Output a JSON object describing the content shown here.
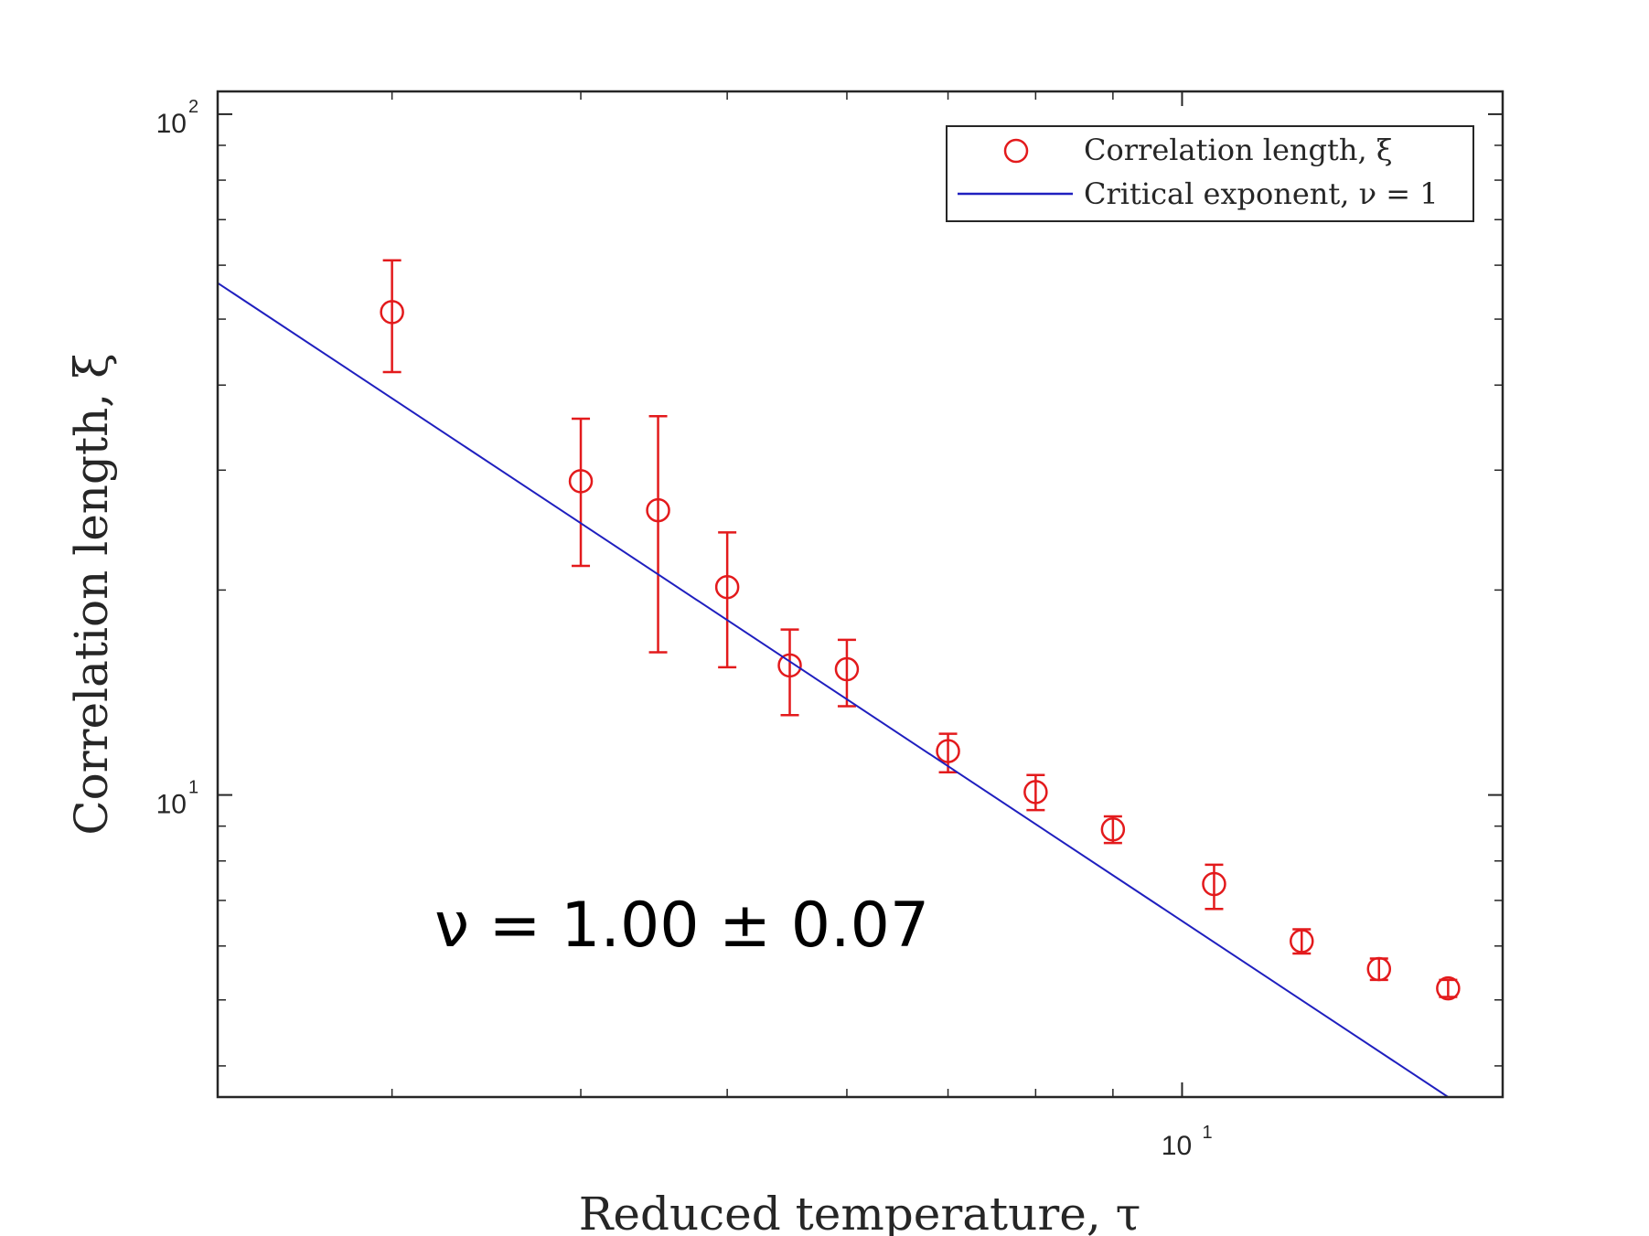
{
  "chart_data": {
    "type": "scatter",
    "title": "",
    "xlabel": "Reduced temperature, τ",
    "ylabel": "Correlation length, ξ",
    "x_scale": "log",
    "y_scale": "log",
    "xlim": [
      2.3,
      16.3
    ],
    "ylim": [
      3.6,
      108
    ],
    "grid": false,
    "legend_position": "top-right",
    "x_major_ticks": [
      {
        "base": "10",
        "exp": "1",
        "value": 10
      }
    ],
    "y_major_ticks": [
      {
        "base": "10",
        "exp": "2",
        "value": 100
      },
      {
        "base": "10",
        "exp": "1",
        "value": 10
      }
    ],
    "series": [
      {
        "name": "Correlation length, ξ",
        "kind": "points_with_errorbars",
        "marker": "open-circle",
        "color": "#e31a1c",
        "x": [
          3.0,
          4.0,
          4.5,
          5.0,
          5.5,
          6.0,
          7.0,
          8.0,
          9.0,
          10.5,
          12.0,
          13.5,
          15.0
        ],
        "y": [
          51.2,
          28.9,
          26.2,
          20.2,
          15.5,
          15.3,
          11.6,
          10.1,
          8.9,
          7.4,
          6.1,
          5.55,
          5.2
        ],
        "yerr_low": [
          9.4,
          7.2,
          10.0,
          4.8,
          2.4,
          1.8,
          0.8,
          0.6,
          0.4,
          0.6,
          0.25,
          0.2,
          0.15
        ],
        "yerr_high": [
          9.8,
          6.8,
          9.8,
          4.1,
          2.0,
          1.6,
          0.7,
          0.6,
          0.4,
          0.5,
          0.25,
          0.2,
          0.15
        ]
      },
      {
        "name": "Critical exponent, ν = 1",
        "kind": "line",
        "color": "#1f1fbf",
        "x": [
          2.3,
          15.0
        ],
        "y": [
          56.5,
          3.6
        ]
      }
    ],
    "annotations": [
      {
        "text": "ν  =  1.00 ±  0.07",
        "x": 3.2,
        "y": 6.0
      }
    ]
  }
}
